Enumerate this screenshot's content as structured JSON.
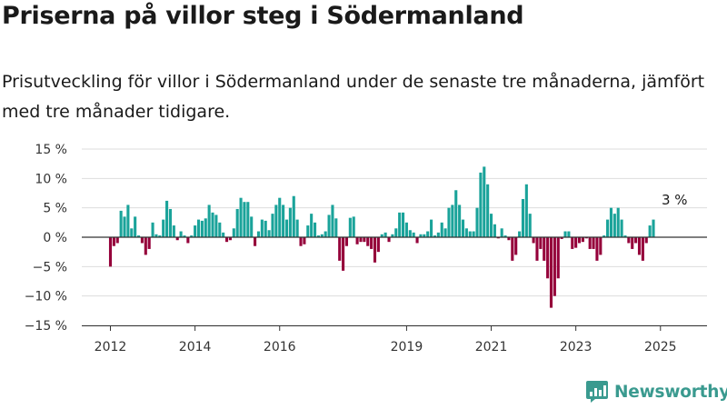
{
  "title": "Priserna på villor steg i Södermanland",
  "subtitle": "Prisutveckling för villor i Södermanland under de senaste tre månaderna, jämfört med tre månader tidigare.",
  "brand": "Newsworthy",
  "colors": {
    "positive": "#1aa39a",
    "negative": "#95003a",
    "grid": "#dddddd",
    "zero": "#333333",
    "brand": "#3a9a8f"
  },
  "chart_data": {
    "type": "bar",
    "ylim": [
      -15,
      15
    ],
    "yticks": [
      {
        "value": 15,
        "label": "15 %"
      },
      {
        "value": 10,
        "label": "10 %"
      },
      {
        "value": 5,
        "label": "5 %"
      },
      {
        "value": 0,
        "label": "0 %"
      },
      {
        "value": -5,
        "label": "−5 %"
      },
      {
        "value": -10,
        "label": "−10 %"
      },
      {
        "value": -15,
        "label": "−15 %"
      }
    ],
    "xticks": [
      {
        "date": "2012-01",
        "label": "2012"
      },
      {
        "date": "2014-01",
        "label": "2014"
      },
      {
        "date": "2016-01",
        "label": "2016"
      },
      {
        "date": "2019-01",
        "label": "2019"
      },
      {
        "date": "2021-01",
        "label": "2021"
      },
      {
        "date": "2023-01",
        "label": "2023"
      },
      {
        "date": "2025-01",
        "label": "2025"
      }
    ],
    "annotation": {
      "date": "2025-05",
      "value": 3,
      "label": "3 %"
    },
    "start": "2012-01",
    "values": [
      -5,
      -1.5,
      -1,
      4.5,
      3.5,
      5.5,
      1.5,
      3.5,
      0.3,
      -1,
      -3,
      -2,
      2.5,
      0.5,
      0.3,
      3,
      6.2,
      4.8,
      2,
      -0.5,
      1,
      0.3,
      -1,
      0.3,
      2,
      3,
      2.8,
      3.2,
      5.5,
      4.2,
      3.8,
      2.5,
      0.8,
      -0.8,
      -0.5,
      1.5,
      4.8,
      6.7,
      6,
      6,
      3.5,
      -1.5,
      1,
      3,
      2.8,
      1.2,
      4,
      5.5,
      6.7,
      5.5,
      3,
      5,
      7,
      3,
      -1.5,
      -1.2,
      2,
      4,
      2.5,
      0.3,
      0.5,
      1,
      3.8,
      5.5,
      3.2,
      -4,
      -5.7,
      -1.5,
      3.3,
      3.5,
      -1.2,
      -0.8,
      -0.8,
      -1.5,
      -2,
      -4.3,
      -2.5,
      0.5,
      0.8,
      -0.8,
      0.5,
      1.5,
      4.2,
      4.2,
      2.5,
      1.2,
      0.8,
      -1,
      0.5,
      0.5,
      1,
      3,
      0.3,
      0.8,
      2.5,
      1.5,
      5,
      5.5,
      8,
      5.5,
      3,
      1.5,
      1,
      1,
      5,
      11,
      12,
      9,
      4,
      2.2,
      -0.2,
      1.5,
      0.3,
      -0.5,
      -4,
      -3,
      1,
      6.5,
      9,
      4,
      -1,
      -4,
      -2,
      -4,
      -7,
      -12,
      -10,
      -7,
      -0.3,
      1,
      1,
      -2,
      -1.8,
      -1,
      -0.8,
      -0.2,
      -2,
      -2,
      -4,
      -3,
      0.3,
      3,
      5,
      4,
      5,
      3,
      0.3,
      -1,
      -2,
      -1,
      -3,
      -4,
      -1,
      2,
      3
    ]
  }
}
